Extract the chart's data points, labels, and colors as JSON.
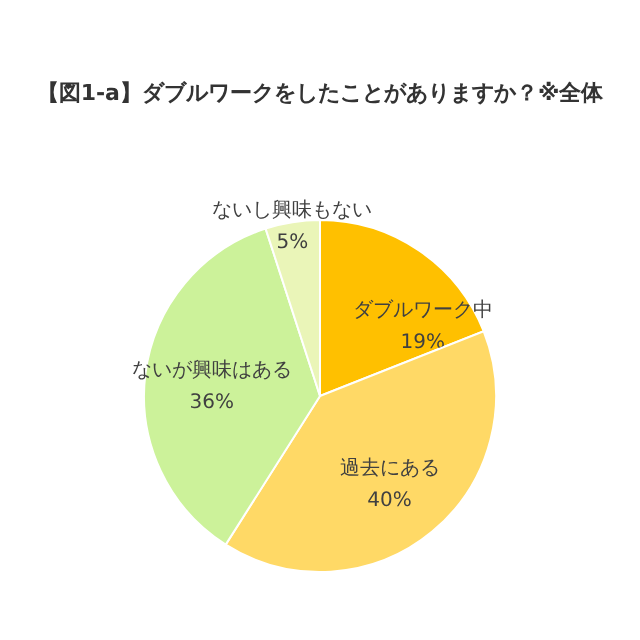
{
  "chart_data": {
    "type": "pie",
    "title": "【図1-a】ダブルワークをしたことがありますか？※全体",
    "categories": [
      "ダブルワーク中",
      "過去にある",
      "ないが興味はある",
      "ないし興味もない"
    ],
    "values": [
      19,
      40,
      36,
      5
    ],
    "colors": [
      "#ffc000",
      "#ffd966",
      "#ccf29a",
      "#eaf5b8"
    ],
    "value_labels": [
      "19%",
      "40%",
      "36%",
      "5%"
    ]
  }
}
